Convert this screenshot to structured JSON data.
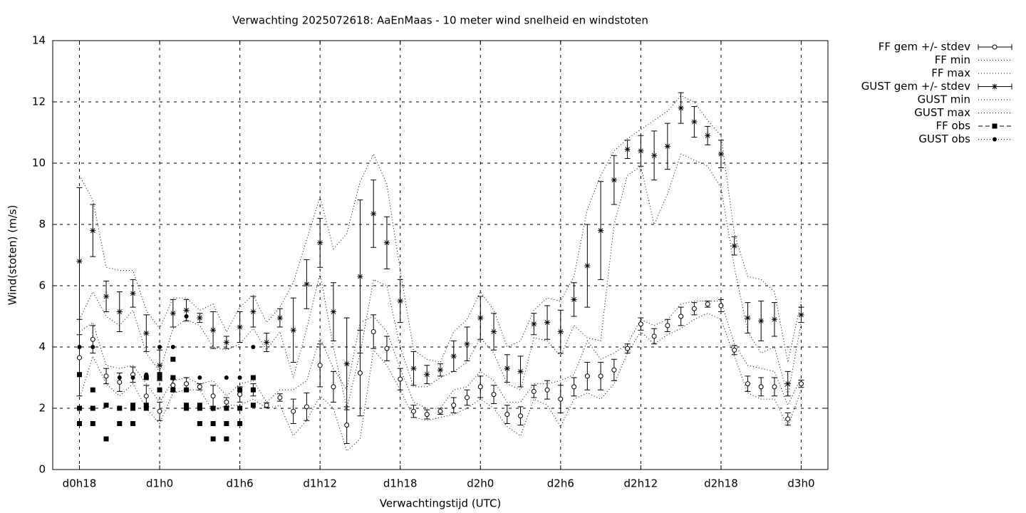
{
  "chart_data": {
    "type": "line",
    "title": "Verwachting 2025072618: AaEnMaas - 10 meter wind snelheid en windstoten",
    "x_label": "Verwachtingstijd (UTC)",
    "y_label": "Wind(stoten) (m/s)",
    "xlim": [
      16,
      74
    ],
    "ylim": [
      0,
      14
    ],
    "xticks": [
      {
        "value": 18,
        "label": "d0h18"
      },
      {
        "value": 24,
        "label": "d1h0"
      },
      {
        "value": 30,
        "label": "d1h6"
      },
      {
        "value": 36,
        "label": "d1h12"
      },
      {
        "value": 42,
        "label": "d1h18"
      },
      {
        "value": 48,
        "label": "d2h0"
      },
      {
        "value": 54,
        "label": "d2h6"
      },
      {
        "value": 60,
        "label": "d2h12"
      },
      {
        "value": 66,
        "label": "d2h18"
      },
      {
        "value": 72,
        "label": "d3h0"
      }
    ],
    "yticks": [
      0,
      2,
      4,
      6,
      8,
      10,
      12,
      14
    ],
    "grid": true,
    "legend": "outside-right",
    "x": [
      18,
      19,
      20,
      21,
      22,
      23,
      24,
      25,
      26,
      27,
      28,
      29,
      30,
      31,
      32,
      33,
      34,
      35,
      36,
      37,
      38,
      39,
      40,
      41,
      42,
      43,
      44,
      45,
      46,
      47,
      48,
      49,
      50,
      51,
      52,
      53,
      54,
      55,
      56,
      57,
      58,
      59,
      60,
      61,
      62,
      63,
      64,
      65,
      66,
      67,
      68,
      69,
      70,
      71,
      72
    ],
    "series": [
      {
        "name": "FF gem +/- stdev",
        "color": "#000000",
        "marker": "circle",
        "line": "errorbar",
        "values": [
          3.65,
          4.25,
          3.05,
          2.85,
          3.1,
          2.4,
          1.9,
          2.75,
          2.8,
          2.7,
          2.4,
          2.2,
          2.45,
          2.6,
          2.1,
          2.35,
          1.9,
          2.05,
          3.4,
          2.7,
          1.45,
          3.15,
          4.5,
          3.95,
          2.95,
          1.9,
          1.8,
          1.9,
          2.1,
          2.35,
          2.7,
          2.45,
          1.8,
          1.75,
          2.55,
          2.6,
          2.3,
          2.7,
          3.05,
          3.05,
          3.25,
          3.95,
          4.75,
          4.35,
          4.7,
          5.0,
          5.25,
          5.4,
          5.35,
          3.9,
          2.8,
          2.7,
          2.7,
          1.65,
          2.8
        ],
        "errors": [
          1.25,
          0.45,
          0.25,
          0.3,
          0.25,
          0.35,
          0.3,
          0.2,
          0.2,
          0.1,
          0.35,
          0.15,
          0.25,
          0.2,
          0.08,
          0.12,
          0.4,
          0.45,
          0.7,
          0.5,
          0.6,
          1.4,
          0.55,
          0.4,
          0.35,
          0.2,
          0.15,
          0.1,
          0.25,
          0.25,
          0.35,
          0.3,
          0.3,
          0.3,
          0.2,
          0.3,
          0.45,
          0.3,
          0.45,
          0.45,
          0.35,
          0.15,
          0.2,
          0.25,
          0.2,
          0.3,
          0.2,
          0.1,
          0.2,
          0.15,
          0.25,
          0.3,
          0.3,
          0.2,
          0.12
        ]
      },
      {
        "name": "FF min",
        "color": "#000000",
        "marker": null,
        "line": "dotted",
        "values": [
          2.3,
          3.7,
          2.8,
          2.4,
          2.8,
          2.0,
          1.5,
          2.5,
          2.6,
          2.6,
          1.9,
          2.1,
          2.1,
          2.3,
          2.0,
          2.1,
          1.1,
          1.6,
          2.4,
          2.0,
          0.6,
          1.0,
          3.9,
          3.4,
          2.6,
          1.7,
          1.6,
          1.7,
          1.8,
          2.0,
          2.3,
          2.0,
          1.4,
          1.1,
          2.3,
          2.1,
          1.4,
          2.3,
          2.5,
          2.3,
          2.8,
          3.8,
          4.5,
          4.1,
          4.4,
          4.6,
          4.9,
          5.1,
          4.9,
          3.7,
          2.5,
          2.3,
          2.3,
          1.4,
          2.6
        ]
      },
      {
        "name": "FF max",
        "color": "#000000",
        "marker": null,
        "line": "dotted",
        "values": [
          4.5,
          4.8,
          3.4,
          3.3,
          3.4,
          2.8,
          2.2,
          2.9,
          3.0,
          2.8,
          2.9,
          2.4,
          2.8,
          2.9,
          2.2,
          2.6,
          2.6,
          2.9,
          4.3,
          3.3,
          2.6,
          4.8,
          5.0,
          4.5,
          3.3,
          2.2,
          2.0,
          2.0,
          2.6,
          2.7,
          3.2,
          2.9,
          2.2,
          2.2,
          2.8,
          2.8,
          2.9,
          3.1,
          4.2,
          3.6,
          3.8,
          4.1,
          4.9,
          4.7,
          4.9,
          5.4,
          5.5,
          5.5,
          5.5,
          4.1,
          3.4,
          3.3,
          3.2,
          2.1,
          3.0
        ]
      },
      {
        "name": "GUST gem +/- stdev",
        "color": "#000000",
        "marker": "star",
        "line": "errorbar",
        "values": [
          6.8,
          7.8,
          5.65,
          5.15,
          5.75,
          4.45,
          3.4,
          5.1,
          5.2,
          4.95,
          4.55,
          4.15,
          4.65,
          5.15,
          4.15,
          4.95,
          4.55,
          6.05,
          7.4,
          5.15,
          3.45,
          6.3,
          8.35,
          7.4,
          5.5,
          3.3,
          3.1,
          3.25,
          3.7,
          4.1,
          4.95,
          4.5,
          3.3,
          3.2,
          4.75,
          4.8,
          4.5,
          5.55,
          6.65,
          7.8,
          9.45,
          10.45,
          10.4,
          10.25,
          10.55,
          11.8,
          11.35,
          10.9,
          10.3,
          7.3,
          4.95,
          4.85,
          4.9,
          2.8,
          5.05
        ],
        "errors": [
          2.4,
          0.85,
          0.5,
          0.65,
          0.45,
          0.6,
          0.5,
          0.45,
          0.35,
          0.15,
          0.6,
          0.2,
          0.5,
          0.5,
          0.3,
          0.3,
          1.05,
          0.8,
          0.8,
          0.95,
          1.5,
          2.5,
          1.1,
          0.85,
          0.7,
          0.55,
          0.3,
          0.2,
          0.5,
          0.55,
          0.7,
          0.6,
          0.45,
          0.5,
          0.35,
          0.55,
          0.7,
          0.55,
          1.35,
          1.6,
          0.8,
          0.3,
          0.5,
          0.8,
          0.75,
          0.5,
          0.5,
          0.3,
          0.45,
          0.3,
          0.5,
          0.65,
          0.55,
          0.4,
          0.25
        ]
      },
      {
        "name": "GUST min",
        "color": "#000000",
        "marker": null,
        "line": "dotted",
        "values": [
          4.9,
          5.8,
          5.0,
          4.7,
          5.2,
          3.8,
          3.2,
          4.6,
          4.9,
          4.7,
          4.0,
          3.9,
          4.1,
          4.6,
          3.9,
          4.5,
          3.0,
          4.6,
          6.4,
          4.0,
          2.0,
          3.8,
          6.2,
          6.0,
          4.0,
          2.7,
          2.7,
          3.0,
          3.2,
          3.5,
          4.3,
          3.8,
          2.8,
          2.6,
          4.3,
          4.2,
          3.7,
          4.7,
          4.3,
          4.2,
          8.0,
          9.6,
          9.9,
          8.0,
          9.0,
          10.3,
          10.1,
          9.9,
          9.2,
          6.6,
          4.5,
          3.8,
          4.0,
          2.4,
          4.8
        ]
      },
      {
        "name": "GUST max",
        "color": "#000000",
        "marker": null,
        "line": "dotted",
        "values": [
          9.6,
          8.8,
          6.6,
          6.5,
          6.5,
          5.2,
          4.6,
          5.6,
          5.6,
          5.2,
          5.4,
          4.5,
          5.3,
          5.7,
          4.8,
          5.3,
          6.1,
          7.5,
          8.9,
          7.2,
          7.7,
          9.4,
          10.3,
          9.3,
          6.5,
          3.9,
          3.6,
          3.5,
          4.5,
          4.9,
          5.8,
          5.2,
          4.0,
          4.2,
          5.2,
          5.6,
          5.5,
          6.3,
          8.5,
          9.6,
          10.4,
          10.8,
          11.1,
          11.4,
          11.7,
          12.2,
          12.0,
          11.4,
          10.9,
          7.7,
          6.3,
          6.2,
          5.8,
          3.5,
          5.5
        ]
      },
      {
        "name": "FF obs",
        "color": "#000000",
        "marker": "square",
        "line": "dashed",
        "x": [
          18,
          18,
          18,
          19,
          19,
          19,
          20,
          20,
          21,
          21,
          22,
          22,
          22,
          23,
          23,
          23,
          24,
          24,
          24,
          25,
          25,
          25,
          26,
          26,
          26,
          27,
          27,
          27,
          28,
          28,
          28,
          29,
          29,
          29,
          30,
          30,
          30,
          31,
          31,
          31
        ],
        "values": [
          3.1,
          2,
          1.5,
          2.6,
          2,
          1.5,
          2.1,
          1,
          2,
          1.5,
          2.1,
          2,
          1.5,
          3,
          2.1,
          2,
          3.1,
          3,
          2.6,
          3.6,
          3,
          2.6,
          2.6,
          2.1,
          2,
          2.1,
          2,
          1.5,
          2,
          1.5,
          1,
          2,
          1.5,
          1,
          2.6,
          2,
          1.5,
          3,
          2.6,
          2.1
        ]
      },
      {
        "name": "GUST obs",
        "color": "#000000",
        "marker": "dot",
        "line": "dotted",
        "x": [
          18,
          19,
          21,
          22,
          23,
          23,
          24,
          24,
          25,
          26,
          27,
          28,
          29,
          29,
          30,
          30,
          31
        ],
        "values": [
          4,
          4,
          3,
          3,
          3.1,
          3,
          4,
          3,
          4,
          5,
          3,
          2,
          3,
          2,
          3,
          2,
          4
        ]
      }
    ]
  }
}
